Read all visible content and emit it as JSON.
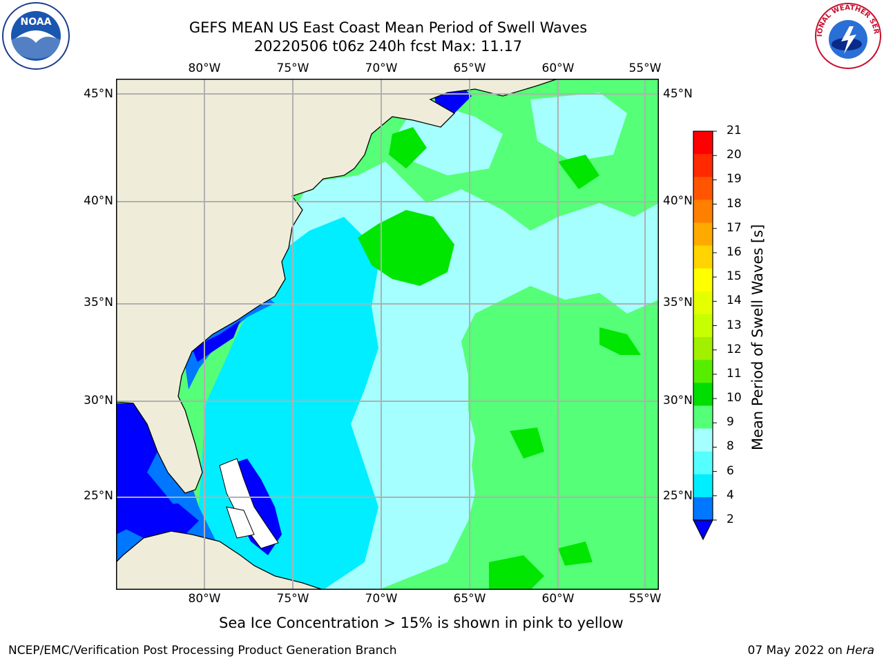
{
  "title": {
    "line1": "GEFS MEAN US East Coast Mean Period of Swell Waves",
    "line2": "20220506 t06z 240h fcst   Max: 11.17"
  },
  "map": {
    "lon_labels": [
      "80°W",
      "75°W",
      "70°W",
      "65°W",
      "60°W",
      "55°W"
    ],
    "lat_labels": [
      "45°N",
      "40°N",
      "35°N",
      "30°N",
      "25°N"
    ],
    "colors": {
      "land": "#efedda",
      "band_2_4": "#0000ff",
      "band_4_6": "#0077ff",
      "band_6_8": "#00eeff",
      "band_8_9": "#a6ffff",
      "band_9_10": "#55ff77",
      "band_10_11": "#00e600",
      "grid": "#b0b0b0"
    }
  },
  "colorbar": {
    "label": "Mean Period of Swell Waves [s]",
    "ticks": [
      "21",
      "20",
      "19",
      "18",
      "17",
      "16",
      "15",
      "14",
      "13",
      "12",
      "11",
      "10",
      "9",
      "8",
      "6",
      "4",
      "2"
    ],
    "colors": [
      "#ff0000",
      "#ff2a00",
      "#ff5500",
      "#ff7f00",
      "#ffaa00",
      "#ffd400",
      "#ffff00",
      "#e6ff00",
      "#c8ff00",
      "#a0f000",
      "#55ee00",
      "#00dd00",
      "#55ff77",
      "#a6ffff",
      "#55ffff",
      "#00eeff",
      "#0077ff"
    ],
    "extend_color": "#0000ff"
  },
  "caption": "Sea Ice Concentration > 15% is shown in pink to yellow",
  "footer": {
    "left": "NCEP/EMC/Verification Post Processing Product Generation Branch",
    "right_prefix": "07 May 2022 on ",
    "right_host": "Hera"
  },
  "logos": {
    "noaa": "NOAA",
    "nws": "NATIONAL WEATHER SERVICE"
  }
}
